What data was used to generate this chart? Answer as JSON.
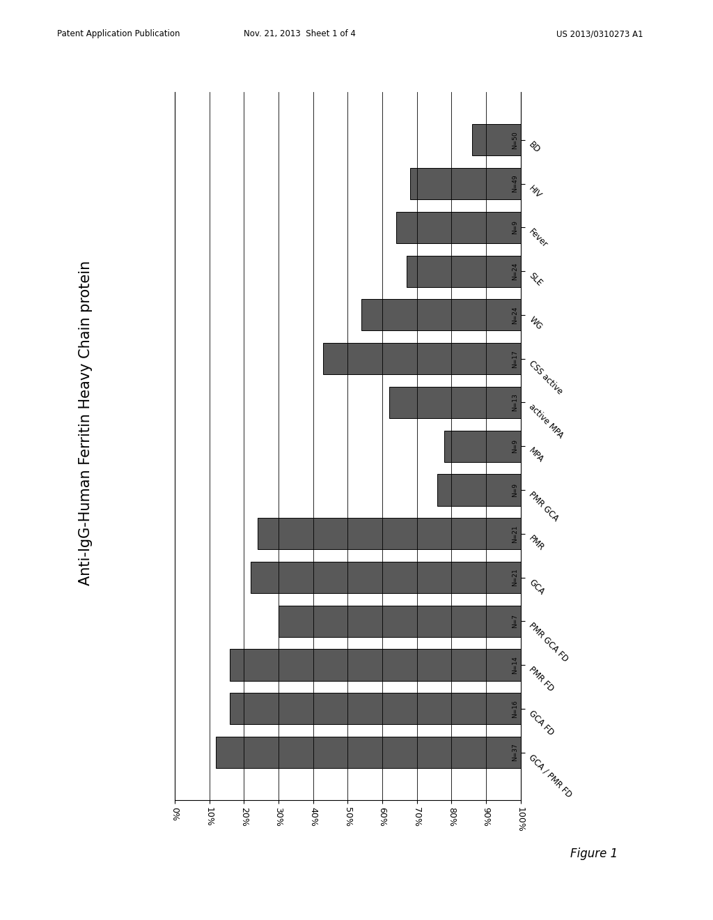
{
  "title": "Anti-IgG-Human Ferritin Heavy Chain protein",
  "categories": [
    "GCA / PMR FD",
    "GCA FD",
    "PMR FD",
    "PMR GCA FD",
    "GCA",
    "PMR",
    "PMR GCA",
    "MPA",
    "active MPA",
    "CSS active",
    "WG",
    "SLE",
    "Fever",
    "HIV",
    "BD"
  ],
  "values": [
    88,
    84,
    84,
    70,
    78,
    76,
    24,
    22,
    38,
    57,
    46,
    33,
    36,
    32,
    14
  ],
  "n_labels": [
    "N=37",
    "N=16",
    "N=14",
    "N=7",
    "N=21",
    "N=21",
    "N=9",
    "N=9",
    "N=13",
    "N=17",
    "N=24",
    "N=24",
    "N=9",
    "N=49",
    "N=50"
  ],
  "bar_color": "#595959",
  "background_color": "#ffffff",
  "figure_label": "Figure 1",
  "header_left": "Patent Application Publication",
  "header_mid": "Nov. 21, 2013  Sheet 1 of 4",
  "header_right": "US 2013/0310273 A1",
  "x_tick_labels": [
    "100%",
    "90%",
    "80%",
    "70%",
    "60%",
    "50%",
    "40%",
    "30%",
    "20%",
    "10%",
    "0%"
  ]
}
